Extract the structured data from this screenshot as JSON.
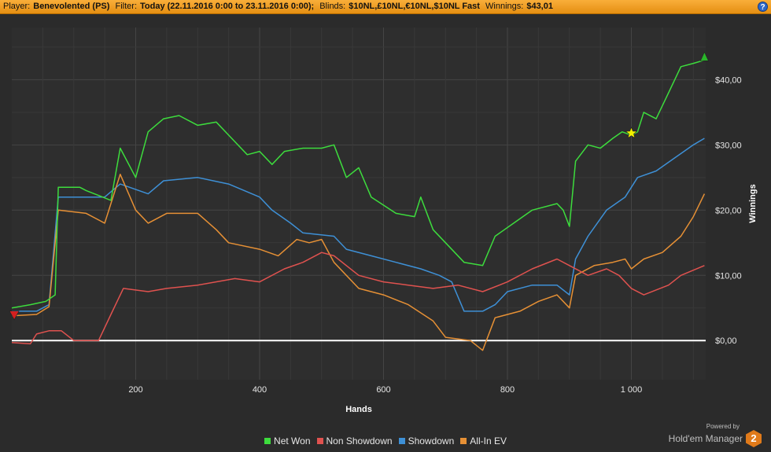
{
  "header": {
    "player_label": "Player:",
    "player_value": "Benevolented (PS)",
    "filter_label": "Filter:",
    "filter_value": "Today (22.11.2016 0:00 to 23.11.2016 0:00);",
    "blinds_label": "Blinds:",
    "blinds_value": "$10NL,£10NL,€10NL,$10NL Fast",
    "winnings_label": "Winnings:",
    "winnings_value": "$43,01",
    "help_label": "?"
  },
  "branding": {
    "powered_by": "Powered by",
    "name": "Hold'em Manager",
    "version_badge": "2"
  },
  "chart_data": {
    "type": "line",
    "xlabel": "Hands",
    "ylabel": "Winnings",
    "xlim": [
      0,
      1120
    ],
    "ylim": [
      -6,
      48
    ],
    "x_ticks": [
      200,
      400,
      600,
      800,
      1000
    ],
    "x_tick_labels": [
      "200",
      "400",
      "600",
      "800",
      "1 000"
    ],
    "y_ticks": [
      0,
      10,
      20,
      30,
      40
    ],
    "y_tick_labels": [
      "$0,00",
      "$10,00",
      "$20,00",
      "$30,00",
      "$40,00"
    ],
    "grid": true,
    "legend_position": "bottom",
    "zero_line_color": "#ffffff",
    "markers": [
      {
        "name": "start-marker",
        "shape": "triangle-down",
        "color": "#d42020",
        "x": 4,
        "y": 3.8
      },
      {
        "name": "star-marker",
        "shape": "star",
        "color": "#f2f200",
        "x": 1000,
        "y": 31.8
      },
      {
        "name": "end-marker",
        "shape": "triangle-up",
        "color": "#2ab52a",
        "x": 1118,
        "y": 43.5
      }
    ],
    "series": [
      {
        "name": "Net Won",
        "color": "#3ddc3d",
        "points": [
          [
            0,
            5
          ],
          [
            30,
            5.5
          ],
          [
            55,
            6
          ],
          [
            70,
            7
          ],
          [
            75,
            23.5
          ],
          [
            110,
            23.5
          ],
          [
            120,
            23
          ],
          [
            160,
            21.5
          ],
          [
            175,
            29.5
          ],
          [
            200,
            25
          ],
          [
            220,
            32
          ],
          [
            245,
            34
          ],
          [
            270,
            34.5
          ],
          [
            300,
            33
          ],
          [
            330,
            33.5
          ],
          [
            350,
            31.5
          ],
          [
            380,
            28.5
          ],
          [
            400,
            29
          ],
          [
            420,
            27
          ],
          [
            440,
            29
          ],
          [
            470,
            29.5
          ],
          [
            500,
            29.5
          ],
          [
            520,
            30
          ],
          [
            540,
            25
          ],
          [
            560,
            26.5
          ],
          [
            580,
            22
          ],
          [
            620,
            19.5
          ],
          [
            650,
            19
          ],
          [
            660,
            22
          ],
          [
            680,
            17
          ],
          [
            700,
            15
          ],
          [
            730,
            12
          ],
          [
            760,
            11.5
          ],
          [
            780,
            16
          ],
          [
            810,
            18
          ],
          [
            840,
            20
          ],
          [
            880,
            21
          ],
          [
            890,
            20
          ],
          [
            900,
            17.5
          ],
          [
            910,
            27.5
          ],
          [
            930,
            30
          ],
          [
            950,
            29.5
          ],
          [
            970,
            31
          ],
          [
            985,
            32
          ],
          [
            1000,
            31.5
          ],
          [
            1010,
            32
          ],
          [
            1020,
            35
          ],
          [
            1040,
            34
          ],
          [
            1060,
            38
          ],
          [
            1080,
            42
          ],
          [
            1100,
            42.5
          ],
          [
            1118,
            43
          ]
        ]
      },
      {
        "name": "Non Showdown",
        "color": "#e0524f",
        "points": [
          [
            0,
            -0.3
          ],
          [
            30,
            -0.5
          ],
          [
            40,
            1
          ],
          [
            60,
            1.5
          ],
          [
            80,
            1.5
          ],
          [
            100,
            0
          ],
          [
            140,
            0
          ],
          [
            160,
            4
          ],
          [
            180,
            8
          ],
          [
            220,
            7.5
          ],
          [
            250,
            8
          ],
          [
            300,
            8.5
          ],
          [
            360,
            9.5
          ],
          [
            400,
            9
          ],
          [
            440,
            11
          ],
          [
            470,
            12
          ],
          [
            500,
            13.5
          ],
          [
            520,
            13
          ],
          [
            560,
            10
          ],
          [
            600,
            9
          ],
          [
            640,
            8.5
          ],
          [
            680,
            8
          ],
          [
            720,
            8.5
          ],
          [
            760,
            7.5
          ],
          [
            800,
            9
          ],
          [
            840,
            11
          ],
          [
            880,
            12.5
          ],
          [
            900,
            11.5
          ],
          [
            930,
            10
          ],
          [
            960,
            11
          ],
          [
            980,
            10
          ],
          [
            1000,
            8
          ],
          [
            1020,
            7
          ],
          [
            1060,
            8.5
          ],
          [
            1080,
            10
          ],
          [
            1118,
            11.5
          ]
        ]
      },
      {
        "name": "Showdown",
        "color": "#3e90d6",
        "points": [
          [
            0,
            4.5
          ],
          [
            40,
            4.5
          ],
          [
            60,
            5.5
          ],
          [
            75,
            22
          ],
          [
            150,
            22
          ],
          [
            175,
            24
          ],
          [
            220,
            22.5
          ],
          [
            245,
            24.5
          ],
          [
            300,
            25
          ],
          [
            350,
            24
          ],
          [
            400,
            22
          ],
          [
            420,
            20
          ],
          [
            450,
            18
          ],
          [
            470,
            16.5
          ],
          [
            520,
            16
          ],
          [
            540,
            14
          ],
          [
            580,
            13
          ],
          [
            620,
            12
          ],
          [
            660,
            11
          ],
          [
            690,
            10
          ],
          [
            710,
            9
          ],
          [
            730,
            4.5
          ],
          [
            760,
            4.5
          ],
          [
            780,
            5.5
          ],
          [
            800,
            7.5
          ],
          [
            840,
            8.5
          ],
          [
            880,
            8.5
          ],
          [
            900,
            7
          ],
          [
            910,
            12.5
          ],
          [
            930,
            16
          ],
          [
            960,
            20
          ],
          [
            990,
            22
          ],
          [
            1010,
            25
          ],
          [
            1040,
            26
          ],
          [
            1070,
            28
          ],
          [
            1100,
            30
          ],
          [
            1118,
            31
          ]
        ]
      },
      {
        "name": "All-In EV",
        "color": "#e69035",
        "points": [
          [
            0,
            3.8
          ],
          [
            40,
            4
          ],
          [
            60,
            5.2
          ],
          [
            75,
            20
          ],
          [
            120,
            19.5
          ],
          [
            150,
            18
          ],
          [
            175,
            25.5
          ],
          [
            200,
            20
          ],
          [
            220,
            18
          ],
          [
            250,
            19.5
          ],
          [
            300,
            19.5
          ],
          [
            330,
            17
          ],
          [
            350,
            15
          ],
          [
            400,
            14
          ],
          [
            430,
            13
          ],
          [
            460,
            15.5
          ],
          [
            480,
            15
          ],
          [
            500,
            15.5
          ],
          [
            520,
            12
          ],
          [
            560,
            8
          ],
          [
            600,
            7
          ],
          [
            640,
            5.5
          ],
          [
            680,
            3
          ],
          [
            700,
            0.5
          ],
          [
            740,
            0
          ],
          [
            760,
            -1.5
          ],
          [
            780,
            3.5
          ],
          [
            820,
            4.5
          ],
          [
            850,
            6
          ],
          [
            880,
            7
          ],
          [
            900,
            5
          ],
          [
            910,
            10
          ],
          [
            940,
            11.5
          ],
          [
            970,
            12
          ],
          [
            990,
            12.5
          ],
          [
            1000,
            11
          ],
          [
            1020,
            12.5
          ],
          [
            1050,
            13.5
          ],
          [
            1080,
            16
          ],
          [
            1100,
            19
          ],
          [
            1118,
            22.5
          ]
        ]
      }
    ]
  }
}
